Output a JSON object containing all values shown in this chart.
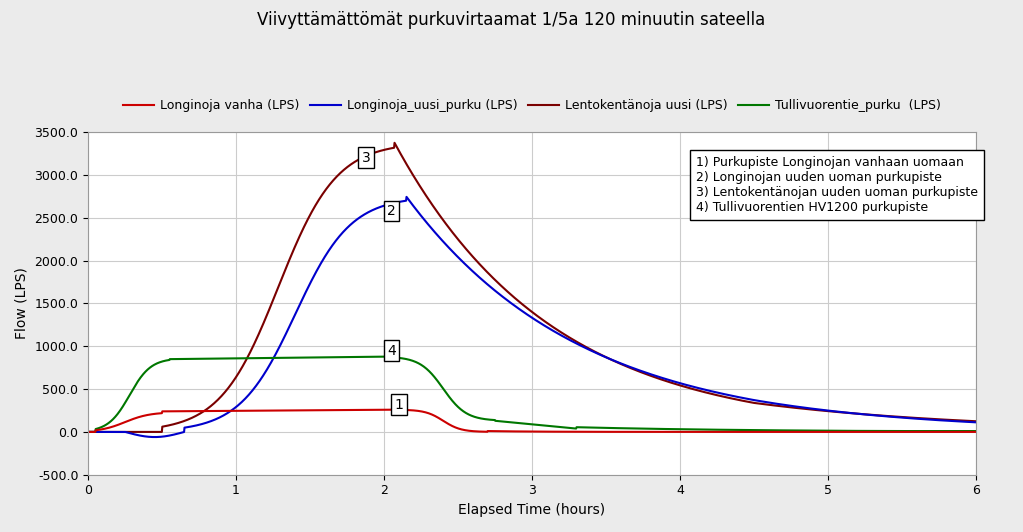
{
  "title": "Viivyttämättömät purkuvirtaamat 1/5a 120 minuutin sateella",
  "xlabel": "Elapsed Time (hours)",
  "ylabel": "Flow (LPS)",
  "xlim": [
    0,
    6
  ],
  "ylim": [
    -500,
    3500
  ],
  "yticks": [
    -500.0,
    0.0,
    500.0,
    1000.0,
    1500.0,
    2000.0,
    2500.0,
    3000.0,
    3500.0
  ],
  "xticks": [
    0,
    1,
    2,
    3,
    4,
    5,
    6
  ],
  "legend_entries": [
    "Longinoja vanha (LPS)",
    "Longinoja_uusi_purku (LPS)",
    "Lentokentänoja uusi (LPS)",
    "Tullivuorentie_purku  (LPS)"
  ],
  "legend_colors": [
    "#cc0000",
    "#0000cc",
    "#7a0000",
    "#007700"
  ],
  "annotation_text": "1) Purkupiste Longinojan vanhaan uomaan\n2) Longinojan uuden uoman purkupiste\n3) Lentokentänojan uuden uoman purkupiste\n4) Tullivuorentien HV1200 purkupiste",
  "bg_color": "#ebebeb",
  "plot_bg_color": "#ffffff",
  "grid_color": "#cccccc",
  "title_fontsize": 12,
  "label_fontsize": 10,
  "tick_fontsize": 9,
  "legend_fontsize": 9,
  "annot_fontsize": 9
}
